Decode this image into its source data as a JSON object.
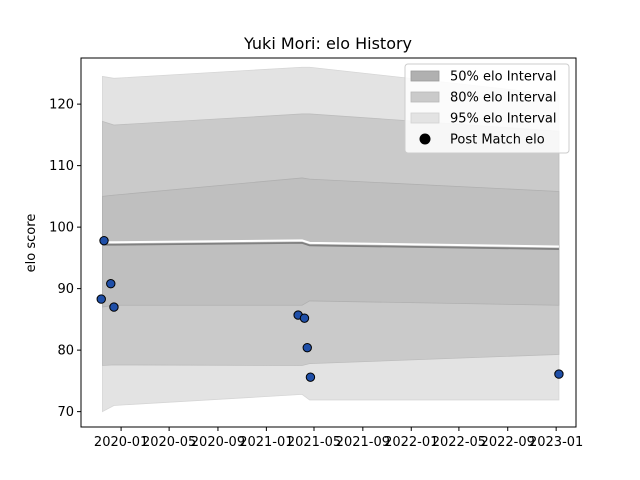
{
  "chart_data": {
    "type": "line",
    "title": "Yuki Mori: elo History",
    "xlabel": "",
    "ylabel": "elo score",
    "x_ticks": [
      "2020-01",
      "2020-05",
      "2020-09",
      "2021-01",
      "2021-05",
      "2021-09",
      "2022-01",
      "2022-05",
      "2022-09",
      "2023-01"
    ],
    "y_ticks": [
      70,
      80,
      90,
      100,
      110,
      120
    ],
    "ylim": [
      67.5,
      127.5
    ],
    "xlim": [
      "2019-09-22",
      "2023-02-20"
    ],
    "legend_position": "top-right",
    "legend": {
      "band50": "50% elo Interval",
      "band80": "80% elo Interval",
      "band95": "95% elo Interval",
      "points": "Post Match elo"
    },
    "rating_curve": {
      "x": [
        "2019-11-15",
        "2019-12-14",
        "2021-04-01",
        "2021-04-20",
        "2023-01-08"
      ],
      "mean": [
        97.3,
        97.3,
        97.6,
        97.2,
        96.6
      ],
      "lower50": [
        87.0,
        87.3,
        87.3,
        88.0,
        87.3
      ],
      "upper50": [
        105.0,
        105.2,
        108.0,
        107.8,
        105.8
      ],
      "lower80": [
        77.5,
        77.6,
        77.5,
        77.8,
        79.3
      ],
      "upper80": [
        117.2,
        116.6,
        118.4,
        118.4,
        115.6
      ],
      "lower95": [
        70.0,
        71.0,
        72.8,
        71.9,
        71.9
      ],
      "upper95": [
        124.5,
        124.2,
        126.0,
        126.0,
        121.5
      ]
    },
    "post_match": {
      "x": [
        "2019-11-12",
        "2019-11-19",
        "2019-12-06",
        "2019-12-14",
        "2021-03-22",
        "2021-04-07",
        "2021-04-14",
        "2021-04-22",
        "2023-01-08"
      ],
      "y": [
        88.3,
        97.8,
        90.8,
        87.0,
        85.7,
        85.2,
        80.4,
        75.6,
        76.1
      ]
    },
    "colors": {
      "band95": "#e3e3e3",
      "band80": "#cacaca",
      "band50": "#bfbfbf",
      "mean_line": "#808080",
      "highlight_line": "#ffffff",
      "marker_fill": "#1f4fa8",
      "marker_edge": "#000000"
    }
  }
}
